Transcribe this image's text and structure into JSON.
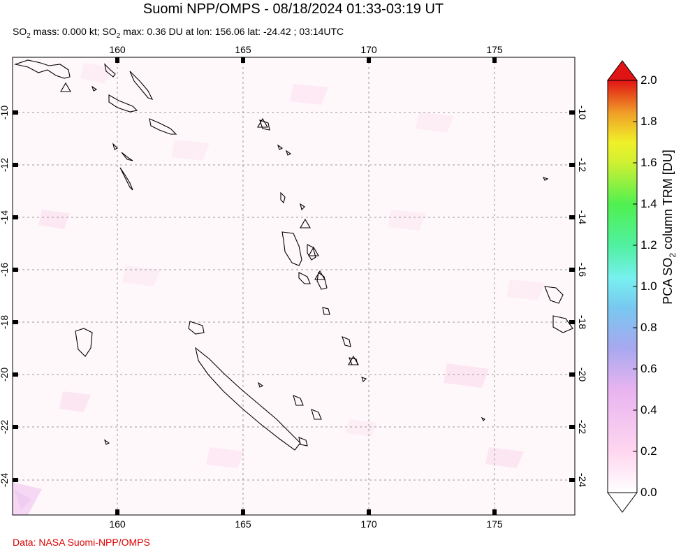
{
  "header": {
    "title": "Suomi NPP/OMPS - 08/18/2024 01:33-03:19 UT",
    "subtitle_parts": [
      "SO",
      "2",
      " mass: 0.000 kt; SO",
      "2",
      " max: 0.36 DU at lon: 156.06 lat: -24.42 ; 03:14UTC"
    ]
  },
  "map": {
    "lon_ticks": [
      "160",
      "165",
      "170",
      "175"
    ],
    "lat_ticks": [
      "-10",
      "-12",
      "-14",
      "-16",
      "-18",
      "-20",
      "-22",
      "-24"
    ],
    "lon_range": [
      156,
      178
    ],
    "lat_range": [
      -25.3,
      -7.9
    ],
    "volcano_marker_icon": "triangle-outline-icon",
    "max_marker": {
      "lon": 156.06,
      "lat": -24.42,
      "value_du": 0.36
    }
  },
  "colorbar": {
    "title_parts": [
      "PCA SO",
      "2",
      " column TRM [DU]"
    ],
    "tick_labels": [
      "2.0",
      "1.8",
      "1.6",
      "1.4",
      "1.2",
      "1.0",
      "0.8",
      "0.6",
      "0.4",
      "0.2",
      "0.0"
    ],
    "colors": [
      "#ffffff",
      "#ffd6f0",
      "#f0b4f0",
      "#c8b4f0",
      "#8c9ff0",
      "#78d0f0",
      "#78f0f0",
      "#78f0c8",
      "#64f064",
      "#c8f050",
      "#f0f028",
      "#f0c828",
      "#f07828",
      "#f03c28",
      "#e01414"
    ]
  },
  "footer": {
    "credit": "Data: NASA Suomi-NPP/OMPS"
  }
}
